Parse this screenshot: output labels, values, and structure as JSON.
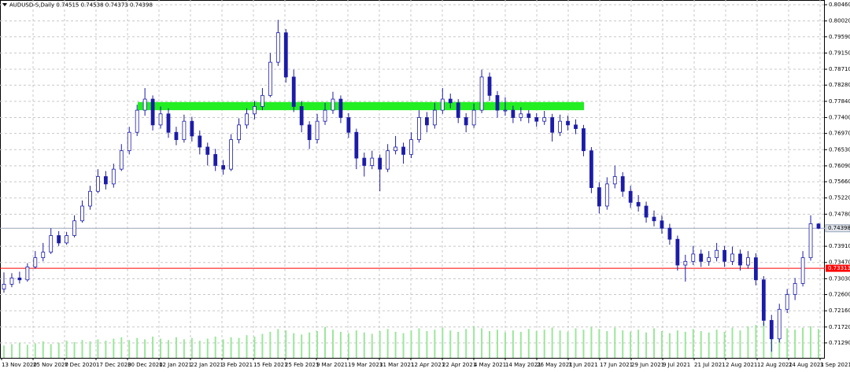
{
  "chart_data": {
    "type": "candlestick",
    "title": "AUDUSD-S,Daily",
    "ylim": [
      0.70884,
      0.80588
    ],
    "yticks": [
      {
        "value": 0.8046,
        "label": "0.80460"
      },
      {
        "value": 0.8002,
        "label": "0.80020"
      },
      {
        "value": 0.7959,
        "label": "0.79590"
      },
      {
        "value": 0.7915,
        "label": "0.79150"
      },
      {
        "value": 0.7871,
        "label": "0.78710"
      },
      {
        "value": 0.7828,
        "label": "0.78280"
      },
      {
        "value": 0.7784,
        "label": "0.77840"
      },
      {
        "value": 0.774,
        "label": "0.77400"
      },
      {
        "value": 0.7697,
        "label": "0.76970"
      },
      {
        "value": 0.7653,
        "label": "0.76530"
      },
      {
        "value": 0.7609,
        "label": "0.76090"
      },
      {
        "value": 0.7566,
        "label": "0.75660"
      },
      {
        "value": 0.7522,
        "label": "0.75220"
      },
      {
        "value": 0.7478,
        "label": "0.74780"
      },
      {
        "value": 0.7391,
        "label": "0.73910"
      },
      {
        "value": 0.7347,
        "label": "0.73470"
      },
      {
        "value": 0.7303,
        "label": "0.73030"
      },
      {
        "value": 0.726,
        "label": "0.72600"
      },
      {
        "value": 0.7216,
        "label": "0.72160"
      },
      {
        "value": 0.7172,
        "label": "0.71720"
      },
      {
        "value": 0.7129,
        "label": "0.71290"
      }
    ],
    "grid": true,
    "xticks": [
      "13 Nov 2020",
      "25 Nov 2020",
      "7 Dec 2020",
      "17 Dec 2020",
      "30 Dec 2020",
      "12 Jan 2021",
      "22 Jan 2021",
      "3 Feb 2021",
      "15 Feb 2021",
      "25 Feb 2021",
      "9 Mar 2021",
      "19 Mar 2021",
      "31 Mar 2021",
      "12 Apr 2021",
      "22 Apr 2021",
      "4 May 2021",
      "14 May 2021",
      "26 May 2021",
      "7 Jun 2021",
      "17 Jun 2021",
      "29 Jun 2021",
      "9 Jul 2021",
      "21 Jul 2021",
      "2 Aug 2021",
      "12 Aug 2021",
      "24 Aug 2021",
      "3 Sep 2021"
    ],
    "candle_color": "#1c1ca8",
    "volume_color": "#9be79b",
    "red_line": 0.73313,
    "red_line_color": "#ff0000",
    "zone": [
      0.776,
      0.7782
    ],
    "zone_color": "#22ee22",
    "ohlc": [
      [
        0.7275,
        0.732,
        0.7265,
        0.7288
      ],
      [
        0.7288,
        0.7318,
        0.728,
        0.7305
      ],
      [
        0.7305,
        0.7322,
        0.729,
        0.73
      ],
      [
        0.73,
        0.7345,
        0.7295,
        0.7335
      ],
      [
        0.7335,
        0.7378,
        0.733,
        0.736
      ],
      [
        0.736,
        0.74,
        0.735,
        0.7375
      ],
      [
        0.7375,
        0.744,
        0.737,
        0.742
      ],
      [
        0.742,
        0.7432,
        0.7392,
        0.74
      ],
      [
        0.74,
        0.743,
        0.7395,
        0.742
      ],
      [
        0.742,
        0.7475,
        0.7415,
        0.746
      ],
      [
        0.746,
        0.7515,
        0.7455,
        0.75
      ],
      [
        0.75,
        0.7555,
        0.749,
        0.754
      ],
      [
        0.754,
        0.76,
        0.7535,
        0.758
      ],
      [
        0.758,
        0.7595,
        0.7545,
        0.756
      ],
      [
        0.756,
        0.7615,
        0.755,
        0.76
      ],
      [
        0.76,
        0.7668,
        0.7595,
        0.765
      ],
      [
        0.765,
        0.7715,
        0.764,
        0.77
      ],
      [
        0.77,
        0.7775,
        0.769,
        0.776
      ],
      [
        0.776,
        0.782,
        0.7745,
        0.779
      ],
      [
        0.779,
        0.78,
        0.7705,
        0.772
      ],
      [
        0.772,
        0.777,
        0.771,
        0.775
      ],
      [
        0.775,
        0.7765,
        0.7685,
        0.77
      ],
      [
        0.77,
        0.7715,
        0.7665,
        0.768
      ],
      [
        0.768,
        0.7748,
        0.7672,
        0.773
      ],
      [
        0.773,
        0.7742,
        0.7675,
        0.769
      ],
      [
        0.769,
        0.7705,
        0.764,
        0.766
      ],
      [
        0.766,
        0.7672,
        0.761,
        0.764
      ],
      [
        0.764,
        0.7655,
        0.7595,
        0.761
      ],
      [
        0.761,
        0.7625,
        0.7585,
        0.76
      ],
      [
        0.76,
        0.7695,
        0.7595,
        0.768
      ],
      [
        0.768,
        0.7738,
        0.767,
        0.772
      ],
      [
        0.772,
        0.7765,
        0.771,
        0.775
      ],
      [
        0.775,
        0.7785,
        0.7735,
        0.777
      ],
      [
        0.777,
        0.782,
        0.776,
        0.78
      ],
      [
        0.78,
        0.7915,
        0.7795,
        0.789
      ],
      [
        0.789,
        0.8005,
        0.788,
        0.797
      ],
      [
        0.797,
        0.798,
        0.7835,
        0.785
      ],
      [
        0.785,
        0.787,
        0.7755,
        0.777
      ],
      [
        0.777,
        0.7785,
        0.77,
        0.772
      ],
      [
        0.772,
        0.773,
        0.7655,
        0.768
      ],
      [
        0.768,
        0.775,
        0.767,
        0.773
      ],
      [
        0.773,
        0.778,
        0.772,
        0.776
      ],
      [
        0.776,
        0.781,
        0.775,
        0.779
      ],
      [
        0.779,
        0.78,
        0.7725,
        0.774
      ],
      [
        0.774,
        0.7752,
        0.7685,
        0.77
      ],
      [
        0.77,
        0.771,
        0.76,
        0.763
      ],
      [
        0.763,
        0.7645,
        0.758,
        0.761
      ],
      [
        0.761,
        0.765,
        0.76,
        0.763
      ],
      [
        0.763,
        0.764,
        0.754,
        0.76
      ],
      [
        0.76,
        0.7668,
        0.7592,
        0.765
      ],
      [
        0.765,
        0.769,
        0.764,
        0.766
      ],
      [
        0.766,
        0.7672,
        0.7615,
        0.764
      ],
      [
        0.764,
        0.77,
        0.763,
        0.768
      ],
      [
        0.768,
        0.776,
        0.7672,
        0.774
      ],
      [
        0.774,
        0.7755,
        0.77,
        0.772
      ],
      [
        0.772,
        0.778,
        0.771,
        0.776
      ],
      [
        0.776,
        0.782,
        0.775,
        0.779
      ],
      [
        0.779,
        0.7805,
        0.7765,
        0.778
      ],
      [
        0.778,
        0.779,
        0.7725,
        0.774
      ],
      [
        0.774,
        0.7752,
        0.77,
        0.772
      ],
      [
        0.772,
        0.7778,
        0.7712,
        0.776
      ],
      [
        0.776,
        0.787,
        0.7752,
        0.785
      ],
      [
        0.785,
        0.7862,
        0.7785,
        0.78
      ],
      [
        0.78,
        0.7812,
        0.774,
        0.776
      ],
      [
        0.776,
        0.7795,
        0.7745,
        0.776
      ],
      [
        0.776,
        0.7772,
        0.7725,
        0.774
      ],
      [
        0.774,
        0.7768,
        0.773,
        0.775
      ],
      [
        0.775,
        0.776,
        0.7725,
        0.774
      ],
      [
        0.774,
        0.7752,
        0.7715,
        0.773
      ],
      [
        0.773,
        0.7758,
        0.772,
        0.774
      ],
      [
        0.774,
        0.775,
        0.7675,
        0.77
      ],
      [
        0.77,
        0.7748,
        0.769,
        0.773
      ],
      [
        0.773,
        0.7745,
        0.7705,
        0.772
      ],
      [
        0.772,
        0.7735,
        0.7695,
        0.771
      ],
      [
        0.771,
        0.772,
        0.7635,
        0.765
      ],
      [
        0.765,
        0.766,
        0.7535,
        0.755
      ],
      [
        0.755,
        0.7565,
        0.748,
        0.75
      ],
      [
        0.75,
        0.7578,
        0.749,
        0.756
      ],
      [
        0.756,
        0.761,
        0.7548,
        0.758
      ],
      [
        0.758,
        0.7592,
        0.7525,
        0.754
      ],
      [
        0.754,
        0.7555,
        0.7495,
        0.751
      ],
      [
        0.751,
        0.753,
        0.7485,
        0.75
      ],
      [
        0.75,
        0.7512,
        0.7455,
        0.747
      ],
      [
        0.747,
        0.7488,
        0.7445,
        0.746
      ],
      [
        0.746,
        0.7475,
        0.7425,
        0.744
      ],
      [
        0.744,
        0.7452,
        0.7395,
        0.741
      ],
      [
        0.741,
        0.742,
        0.7325,
        0.734
      ],
      [
        0.734,
        0.7368,
        0.7295,
        0.735
      ],
      [
        0.735,
        0.7392,
        0.734,
        0.737
      ],
      [
        0.737,
        0.7382,
        0.7335,
        0.735
      ],
      [
        0.735,
        0.7378,
        0.7338,
        0.736
      ],
      [
        0.736,
        0.74,
        0.735,
        0.738
      ],
      [
        0.738,
        0.7392,
        0.7335,
        0.735
      ],
      [
        0.735,
        0.739,
        0.734,
        0.737
      ],
      [
        0.737,
        0.7382,
        0.7325,
        0.734
      ],
      [
        0.734,
        0.7378,
        0.733,
        0.736
      ],
      [
        0.736,
        0.7372,
        0.7285,
        0.73
      ],
      [
        0.73,
        0.731,
        0.7175,
        0.719
      ],
      [
        0.719,
        0.7205,
        0.7105,
        0.714
      ],
      [
        0.714,
        0.7235,
        0.713,
        0.722
      ],
      [
        0.722,
        0.7275,
        0.721,
        0.726
      ],
      [
        0.726,
        0.7305,
        0.7245,
        0.729
      ],
      [
        0.729,
        0.7378,
        0.7282,
        0.736
      ],
      [
        0.736,
        0.7475,
        0.7352,
        0.7452
      ],
      [
        0.74515,
        0.74538,
        0.74373,
        0.74398
      ]
    ],
    "volume": [
      18,
      20,
      22,
      19,
      21,
      24,
      20,
      22,
      25,
      23,
      26,
      24,
      27,
      25,
      28,
      30,
      26,
      29,
      27,
      31,
      28,
      26,
      30,
      27,
      29,
      25,
      28,
      31,
      27,
      30,
      29,
      33,
      31,
      35,
      38,
      42,
      40,
      36,
      34,
      37,
      39,
      45,
      41,
      38,
      36,
      40,
      37,
      35,
      39,
      42,
      38,
      36,
      40,
      43,
      39,
      41,
      44,
      40,
      38,
      42,
      46,
      43,
      39,
      41,
      37,
      40,
      38,
      42,
      39,
      41,
      44,
      40,
      38,
      43,
      41,
      45,
      42,
      39,
      44,
      40,
      38,
      41,
      37,
      43,
      39,
      36,
      40,
      38,
      42,
      39,
      37,
      41,
      38,
      44,
      40,
      46,
      48,
      52,
      55,
      47,
      43,
      41,
      44,
      46,
      42
    ]
  }
}
